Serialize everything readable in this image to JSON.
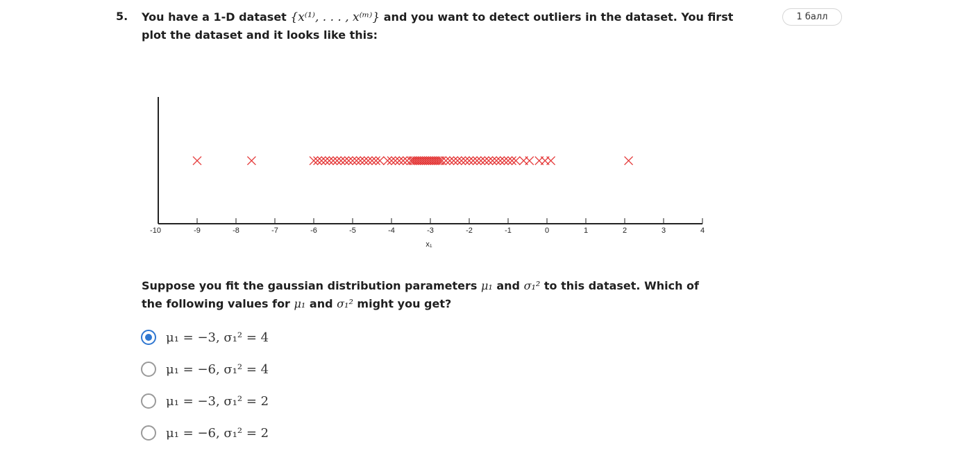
{
  "question": {
    "number": "5.",
    "points": "1 балл",
    "text_part1": "You have a 1-D dataset ",
    "dataset_math": "{x⁽¹⁾, . . . , x⁽ᵐ⁾}",
    "text_part2": " and you want to detect outliers in the dataset. You first plot the dataset and it looks like this:",
    "sub_part1": "Suppose you fit the gaussian distribution parameters ",
    "mu_math": "μ₁",
    "sub_part2": " and ",
    "sigma_math": "σ₁²",
    "sub_part3": " to this dataset. Which of the following values for ",
    "mu_math_2": "μ₁",
    "sub_part4": " and ",
    "sigma_math_2": "σ₁²",
    "sub_part5": " might you get?"
  },
  "chart_data": {
    "type": "scatter",
    "xlabel": "x₁",
    "xlim": [
      -10,
      4
    ],
    "ticks": [
      -10,
      -9,
      -8,
      -7,
      -6,
      -5,
      -4,
      -3,
      -2,
      -1,
      0,
      1,
      2,
      3,
      4
    ],
    "marker": "x",
    "color": "#e02020",
    "points_x": [
      -9.0,
      -7.6,
      -6.0,
      -5.9,
      -5.8,
      -5.7,
      -5.6,
      -5.5,
      -5.4,
      -5.3,
      -5.2,
      -5.1,
      -5.0,
      -4.9,
      -4.8,
      -4.7,
      -4.6,
      -4.5,
      -4.4,
      -4.3,
      -4.1,
      -4.0,
      -3.9,
      -3.8,
      -3.7,
      -3.6,
      -3.5,
      -3.45,
      -3.4,
      -3.35,
      -3.3,
      -3.25,
      -3.2,
      -3.15,
      -3.1,
      -3.05,
      -3.0,
      -2.95,
      -2.9,
      -2.85,
      -2.8,
      -2.75,
      -2.7,
      -2.6,
      -2.5,
      -2.4,
      -2.3,
      -2.2,
      -2.1,
      -2.0,
      -1.9,
      -1.8,
      -1.7,
      -1.6,
      -1.5,
      -1.4,
      -1.3,
      -1.2,
      -1.1,
      -1.0,
      -0.9,
      -0.8,
      -0.6,
      -0.45,
      -0.2,
      -0.05,
      0.1,
      2.1
    ]
  },
  "options": [
    {
      "label": "μ₁ = −3, σ₁² = 4",
      "selected": true
    },
    {
      "label": "μ₁ = −6, σ₁² = 4",
      "selected": false
    },
    {
      "label": "μ₁ = −3, σ₁² = 2",
      "selected": false
    },
    {
      "label": "μ₁ = −6, σ₁² = 2",
      "selected": false
    }
  ]
}
